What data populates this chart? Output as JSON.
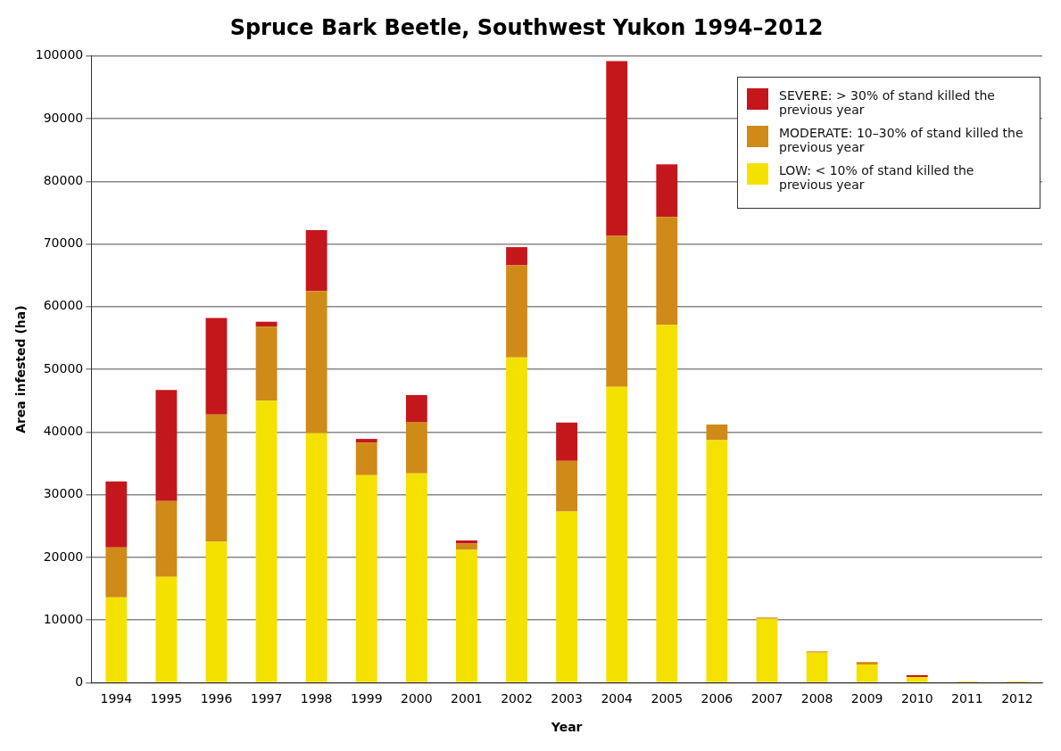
{
  "chart_data": {
    "type": "bar",
    "title": "Spruce Bark Beetle, Southwest Yukon 1994–2012",
    "xlabel": "Year",
    "ylabel": "Area infested (ha)",
    "categories": [
      "1994",
      "1995",
      "1996",
      "1997",
      "1998",
      "1999",
      "2000",
      "2001",
      "2002",
      "2003",
      "2004",
      "2005",
      "2006",
      "2007",
      "2008",
      "2009",
      "2010",
      "2011",
      "2012"
    ],
    "stacked": true,
    "grid": "y",
    "legend": "top right",
    "ylim": [
      0,
      100000
    ],
    "yticks": [
      0,
      10000,
      20000,
      30000,
      40000,
      50000,
      60000,
      70000,
      80000,
      90000,
      100000
    ],
    "series": [
      {
        "name": "LOW: < 10% of stand killed the previous year",
        "color": "#f5e100",
        "values": [
          13600,
          16900,
          22500,
          45000,
          39800,
          33100,
          33400,
          21200,
          51900,
          27300,
          47200,
          57100,
          38700,
          10200,
          4800,
          2900,
          900,
          200,
          200
        ]
      },
      {
        "name": "MODERATE: 10–30% of stand killed the previous year",
        "color": "#d08a17",
        "values": [
          8000,
          12100,
          20300,
          11800,
          22700,
          5200,
          8200,
          1000,
          14700,
          8100,
          24100,
          17200,
          2500,
          200,
          200,
          400,
          0,
          0,
          0
        ]
      },
      {
        "name": "SEVERE: > 30% of stand killed the previous year",
        "color": "#c4171c",
        "values": [
          10500,
          17700,
          15400,
          800,
          9700,
          600,
          4300,
          500,
          2900,
          6100,
          27900,
          8400,
          0,
          0,
          0,
          0,
          300,
          0,
          0
        ]
      }
    ]
  }
}
